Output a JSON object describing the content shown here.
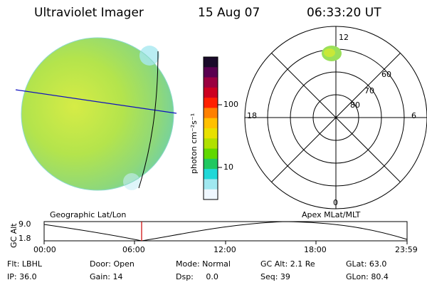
{
  "header": {
    "instrument": "Ultraviolet Imager",
    "date": "15 Aug 07",
    "time": "06:33:20 UT"
  },
  "colorbar": {
    "unit_label": "photon cm⁻²s⁻¹",
    "tick_labels": [
      "100",
      "10"
    ],
    "colors": [
      "#1a0a2a",
      "#5a0050",
      "#9a0040",
      "#cc0020",
      "#ff2000",
      "#ff8000",
      "#ffc000",
      "#e8e000",
      "#b0e000",
      "#60d800",
      "#20c860",
      "#20d8d8",
      "#a0e8f0",
      "#f0f8ff"
    ]
  },
  "image_panel": {
    "caption": "Geographic Lat/Lon",
    "disk_color": "#9ee070",
    "disk_color_dim": "#7ed89a"
  },
  "polar_panel": {
    "caption": "Apex MLat/MLT",
    "mlt_labels": {
      "top": "12",
      "left": "18",
      "right": "6",
      "bottom": "0"
    },
    "lat_labels": [
      "60",
      "70",
      "80"
    ]
  },
  "altitude_plot": {
    "ylabel": "GC Alt",
    "y_ticks": [
      "9.0",
      "1.8"
    ],
    "x_ticks": [
      "00:00",
      "06:00",
      "12:00",
      "18:00",
      "23:59"
    ],
    "marker_color": "#cc0000"
  },
  "info": {
    "filter": "Flt: LBHL",
    "door": "Door: Open",
    "mode": "Mode: Normal",
    "gc_alt": "GC Alt: 2.1 Re",
    "glat": "GLat: 63.0",
    "ip": "IP: 36.0",
    "gain": "Gain: 14",
    "dsp": "Dsp:     0.0",
    "seq": "Seq: 39",
    "glon": "GLon: 80.4"
  }
}
